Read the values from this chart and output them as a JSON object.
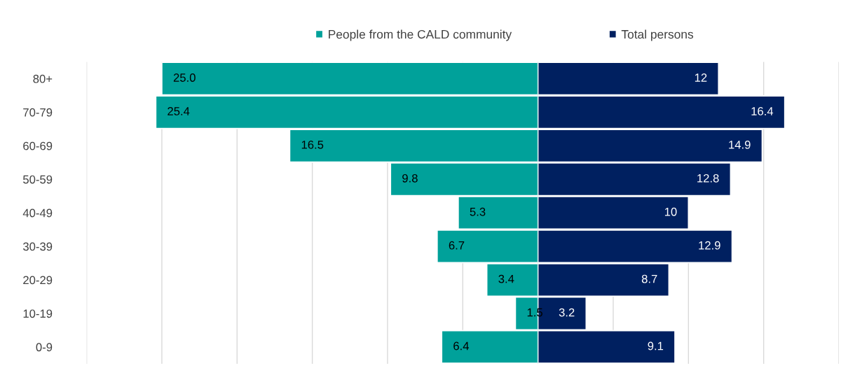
{
  "chart_data": [
    {
      "type": "bar",
      "orientation": "horizontal",
      "categories": [
        "80+",
        "70-79",
        "60-69",
        "50-59",
        "40-49",
        "30-39",
        "20-29",
        "10-19",
        "0-9"
      ],
      "series": [
        {
          "name": "People from the CALD community",
          "color": "#00a19a",
          "values": [
            25.0,
            25.4,
            16.5,
            9.8,
            5.3,
            6.7,
            3.4,
            1.5,
            6.4
          ],
          "value_labels": [
            "25.0",
            "25.4",
            "16.5",
            "9.8",
            "5.3",
            "6.7",
            "3.4",
            "1.5",
            "6.4"
          ]
        }
      ],
      "xlim": [
        30,
        0
      ],
      "xticks": [
        {
          "value": 30,
          "label": null
        },
        {
          "value": 25,
          "label": null
        },
        {
          "value": 20,
          "label": null
        },
        {
          "value": 15,
          "label": null
        },
        {
          "value": 10,
          "label": null
        },
        {
          "value": 5,
          "label": null
        },
        {
          "value": 0,
          "label": null
        }
      ],
      "grid": "x",
      "legend": "top",
      "tick_labels": "y"
    },
    {
      "type": "bar",
      "orientation": "horizontal",
      "categories": [
        null,
        null,
        null,
        null,
        null,
        null,
        null,
        null,
        null
      ],
      "series": [
        {
          "name": "Total persons",
          "color": "#002060",
          "values": [
            12,
            16.4,
            14.9,
            12.8,
            10,
            12.9,
            8.7,
            3.2,
            9.1
          ],
          "value_labels": [
            "12",
            "16.4",
            "14.9",
            "12.8",
            "10",
            "12.9",
            "8.7",
            "3.2",
            "9.1"
          ]
        }
      ],
      "xlim": [
        0,
        20
      ],
      "xticks": [
        {
          "value": 0,
          "label": null
        },
        {
          "value": 5,
          "label": null
        },
        {
          "value": 10,
          "label": null
        },
        {
          "value": 15,
          "label": null
        },
        {
          "value": 20,
          "label": null
        }
      ],
      "grid": "x",
      "legend": "top",
      "tick_labels": false
    }
  ]
}
